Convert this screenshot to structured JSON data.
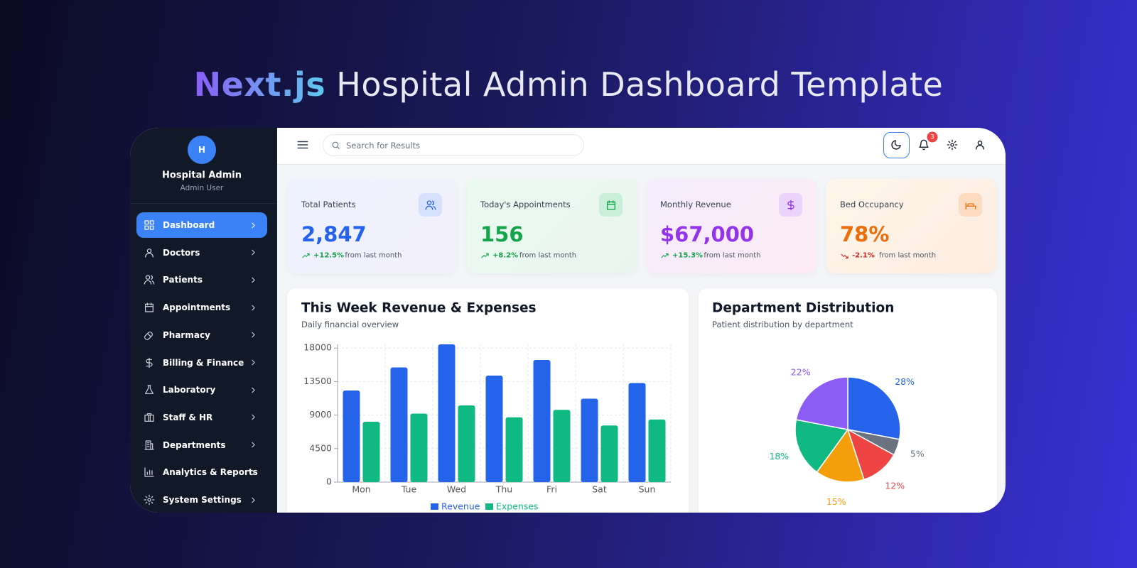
{
  "banner": {
    "title_highlight": "Next.js",
    "title_rest": "Hospital Admin Dashboard Template"
  },
  "sidebar": {
    "avatar": "H",
    "name": "Hospital Admin",
    "role": "Admin User",
    "menu": [
      "Dashboard",
      "Doctors",
      "Patients",
      "Appointments",
      "Pharmacy",
      "Billing & Finance",
      "Laboratory",
      "Staff & HR",
      "Departments",
      "Analytics & Reports",
      "System Settings"
    ]
  },
  "topbar": {
    "search_placeholder": "Search for Results",
    "notification_count": 3
  },
  "stats": [
    {
      "label": "Total Patients",
      "value": "2,847",
      "change": "+12.5%",
      "note": "from last month"
    },
    {
      "label": "Today's Appointments",
      "value": "156",
      "change": "+8.2%",
      "note": "from last month"
    },
    {
      "label": "Monthly Revenue",
      "value": "$67,000",
      "change": "+15.3%",
      "note": "from last month"
    },
    {
      "label": "Bed Occupancy",
      "value": "78%",
      "change": "-2.1%",
      "note": "from last month"
    }
  ],
  "chart_data": [
    {
      "type": "bar",
      "title": "This Week Revenue & Expenses",
      "subtitle": "Daily financial overview",
      "categories": [
        "Mon",
        "Tue",
        "Wed",
        "Thu",
        "Fri",
        "Sat",
        "Sun"
      ],
      "series": [
        {
          "name": "Revenue",
          "color": "#2563eb",
          "values": [
            12300,
            15400,
            18500,
            14300,
            16400,
            11200,
            13300
          ]
        },
        {
          "name": "Expenses",
          "color": "#10b981",
          "values": [
            8100,
            9200,
            10300,
            8700,
            9700,
            7600,
            8400
          ]
        }
      ],
      "ylim": [
        0,
        18500
      ],
      "yticks": [
        0,
        4500,
        9000,
        13500,
        18000
      ],
      "grid": true,
      "legend": "bottom"
    },
    {
      "type": "pie",
      "title": "Department Distribution",
      "subtitle": "Patient distribution by department",
      "values": [
        28,
        5,
        12,
        15,
        18,
        22
      ],
      "value_labels": [
        "28%",
        "5%",
        "12%",
        "15%",
        "18%",
        "22%"
      ],
      "colors": [
        "#2563eb",
        "#6b7280",
        "#ef4444",
        "#f59e0b",
        "#10b981",
        "#8b5cf6"
      ]
    }
  ]
}
